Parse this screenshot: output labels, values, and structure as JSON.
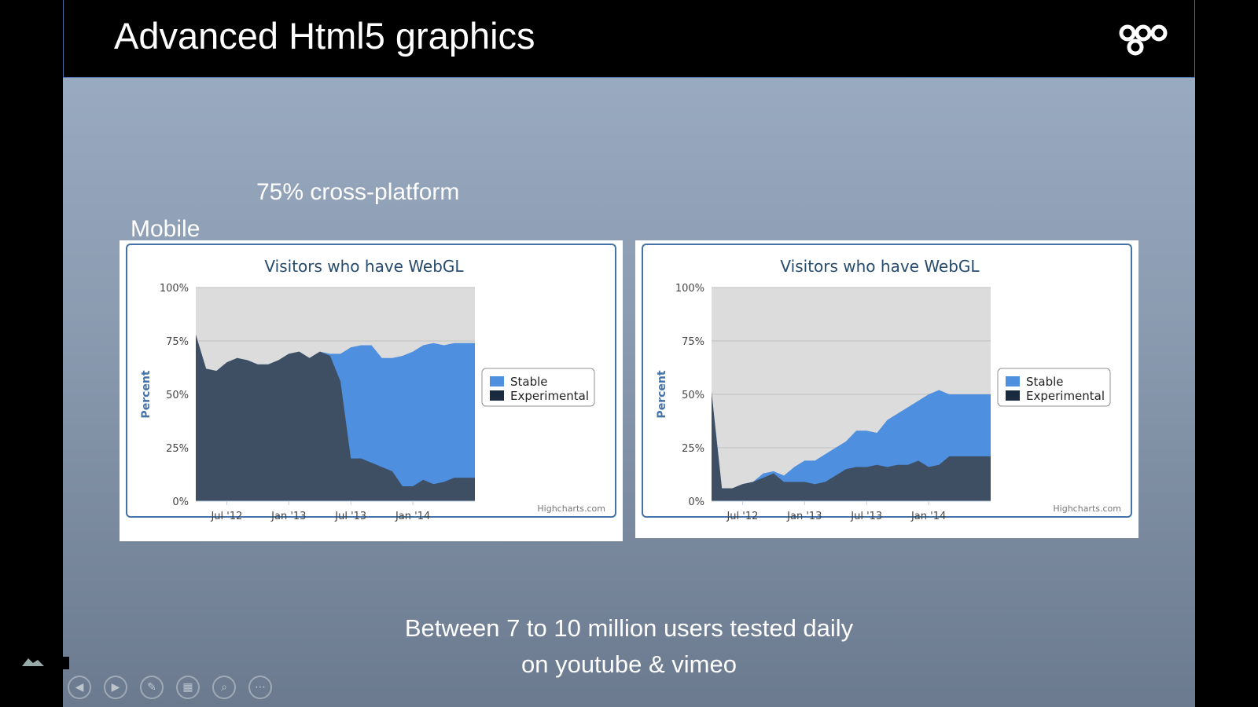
{
  "slide": {
    "title": "Advanced Html5 graphics",
    "subtitle": "75% cross-platform",
    "mobile_label": "Mobile",
    "footer_line1": "Between 7 to 10 million users tested daily",
    "footer_line2": "on youtube & vimeo"
  },
  "colors": {
    "stable": "#4f8fdf",
    "experimental": "#3e4f63",
    "plot_bg": "#dcdcdc",
    "frame": "#4572a7",
    "title": "#274b6d"
  },
  "icons": {
    "logo": "three-rings-logo",
    "prev": "chevron-left-icon",
    "next": "chevron-right-icon",
    "pen": "pen-icon",
    "slides": "slides-grid-icon",
    "zoom": "magnifier-icon",
    "more": "more-dots-icon"
  },
  "chart_data": [
    {
      "type": "area",
      "title": "Visitors who have WebGL",
      "ylabel": "Percent",
      "credit": "Highcharts.com",
      "ylim": [
        0,
        100
      ],
      "yticks": [
        "0%",
        "25%",
        "50%",
        "75%",
        "100%"
      ],
      "xlim": [
        "2012-04",
        "2014-07"
      ],
      "xticks": [
        {
          "label": "Jul '12",
          "value": "2012-07"
        },
        {
          "label": "Jan '13",
          "value": "2013-01"
        },
        {
          "label": "Jul '13",
          "value": "2013-07"
        },
        {
          "label": "Jan '14",
          "value": "2014-01"
        }
      ],
      "legend": {
        "position": "right",
        "items": [
          "Stable",
          "Experimental"
        ]
      },
      "x": [
        "2012-04",
        "2012-05",
        "2012-06",
        "2012-07",
        "2012-08",
        "2012-09",
        "2012-10",
        "2012-11",
        "2012-12",
        "2013-01",
        "2013-02",
        "2013-03",
        "2013-04",
        "2013-05",
        "2013-06",
        "2013-07",
        "2013-08",
        "2013-09",
        "2013-10",
        "2013-11",
        "2013-12",
        "2014-01",
        "2014-02",
        "2014-03",
        "2014-04",
        "2014-05",
        "2014-06",
        "2014-07"
      ],
      "series": [
        {
          "name": "Experimental",
          "values": [
            78,
            62,
            61,
            65,
            67,
            66,
            64,
            64,
            66,
            69,
            70,
            67,
            70,
            68,
            56,
            20,
            20,
            18,
            16,
            14,
            7,
            7,
            10,
            8,
            9,
            11,
            11,
            11
          ]
        },
        {
          "name": "Stable",
          "values": [
            0,
            0,
            0,
            0,
            0,
            0,
            0,
            0,
            0,
            0,
            0,
            0,
            0,
            1,
            13,
            52,
            53,
            55,
            51,
            53,
            61,
            63,
            63,
            66,
            64,
            63,
            63,
            63
          ]
        }
      ]
    },
    {
      "type": "area",
      "title": "Visitors who have WebGL",
      "ylabel": "Percent",
      "credit": "Highcharts.com",
      "ylim": [
        0,
        100
      ],
      "yticks": [
        "0%",
        "25%",
        "50%",
        "75%",
        "100%"
      ],
      "xlim": [
        "2012-04",
        "2014-07"
      ],
      "xticks": [
        {
          "label": "Jul '12",
          "value": "2012-07"
        },
        {
          "label": "Jan '13",
          "value": "2013-01"
        },
        {
          "label": "Jul '13",
          "value": "2013-07"
        },
        {
          "label": "Jan '14",
          "value": "2014-01"
        }
      ],
      "legend": {
        "position": "right",
        "items": [
          "Stable",
          "Experimental"
        ]
      },
      "x": [
        "2012-04",
        "2012-05",
        "2012-06",
        "2012-07",
        "2012-08",
        "2012-09",
        "2012-10",
        "2012-11",
        "2012-12",
        "2013-01",
        "2013-02",
        "2013-03",
        "2013-04",
        "2013-05",
        "2013-06",
        "2013-07",
        "2013-08",
        "2013-09",
        "2013-10",
        "2013-11",
        "2013-12",
        "2014-01",
        "2014-02",
        "2014-03",
        "2014-04",
        "2014-05",
        "2014-06",
        "2014-07"
      ],
      "series": [
        {
          "name": "Experimental",
          "values": [
            51,
            6,
            6,
            8,
            9,
            11,
            13,
            9,
            9,
            9,
            8,
            9,
            12,
            15,
            16,
            16,
            17,
            16,
            17,
            17,
            19,
            16,
            17,
            21,
            21,
            21,
            21,
            21
          ]
        },
        {
          "name": "Stable",
          "values": [
            0,
            0,
            0,
            0,
            0,
            2,
            1,
            3,
            7,
            10,
            11,
            13,
            13,
            13,
            17,
            17,
            15,
            22,
            24,
            27,
            28,
            34,
            35,
            29,
            29,
            29,
            29,
            29
          ]
        }
      ]
    }
  ]
}
